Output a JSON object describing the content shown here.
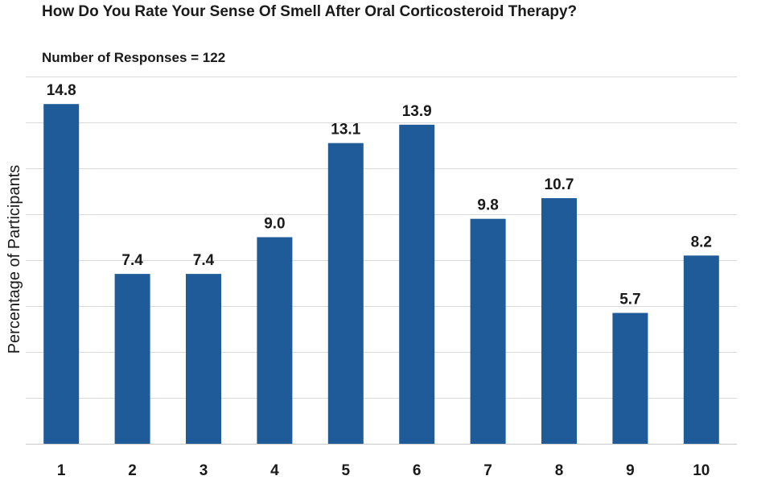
{
  "chart_data": {
    "type": "bar",
    "title": "How Do You Rate Your Sense Of Smell After Oral Corticosteroid Therapy?",
    "subtitle": "Number of Responses = 122",
    "xlabel": "",
    "ylabel": "Percentage of Participants",
    "categories": [
      "1",
      "2",
      "3",
      "4",
      "5",
      "6",
      "7",
      "8",
      "9",
      "10"
    ],
    "values": [
      14.8,
      7.4,
      7.4,
      9.0,
      13.1,
      13.9,
      9.8,
      10.7,
      5.7,
      8.2
    ],
    "value_labels": [
      "14.8",
      "7.4",
      "7.4",
      "9.0",
      "13.1",
      "13.9",
      "9.8",
      "10.7",
      "5.7",
      "8.2"
    ],
    "ylim": [
      0,
      16
    ],
    "ytick_step": 2,
    "grid": true,
    "bar_color": "#1f5b99"
  }
}
